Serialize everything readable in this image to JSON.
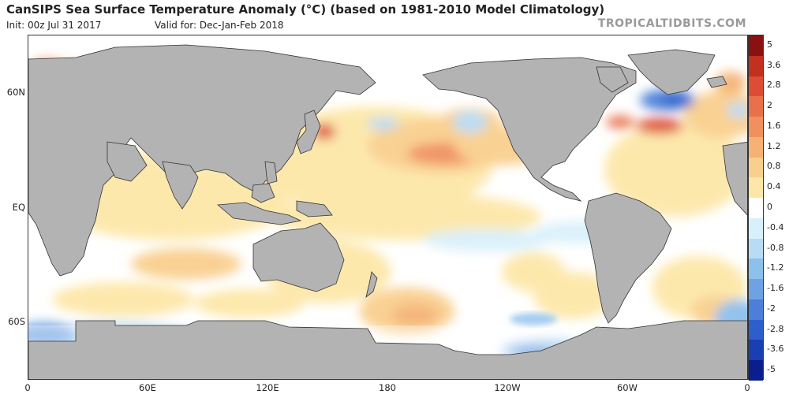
{
  "header": {
    "title": "CanSIPS Sea Surface Temperature Anomaly (°C) (based on 1981-2010 Model Climatology)",
    "init": "Init: 00z Jul 31 2017",
    "valid": "Valid for: Dec-Jan-Feb 2018",
    "brand": "TROPICALTIDBITS.COM"
  },
  "map": {
    "lat_labels": [
      "60N",
      "EQ",
      "60S"
    ],
    "lon_labels": [
      "0",
      "60E",
      "120E",
      "180",
      "120W",
      "60W",
      "0"
    ]
  },
  "colorbar": {
    "labels": [
      "5",
      "3.6",
      "2.8",
      "2",
      "1.6",
      "1.2",
      "0.8",
      "0.4",
      "0",
      "-0.4",
      "-0.8",
      "-1.2",
      "-1.6",
      "-2",
      "-2.8",
      "-3.6",
      "-5"
    ],
    "colors": [
      "#8b1010",
      "#c23020",
      "#dd4d35",
      "#e8704a",
      "#f09060",
      "#f5b276",
      "#f9cf8e",
      "#fde7a8",
      "#ffffff",
      "#d8f0fb",
      "#b7dcf4",
      "#8ec0ec",
      "#6ea2e2",
      "#4c80d8",
      "#2c5fcc",
      "#1a3fb2",
      "#0a1f8c"
    ]
  }
}
